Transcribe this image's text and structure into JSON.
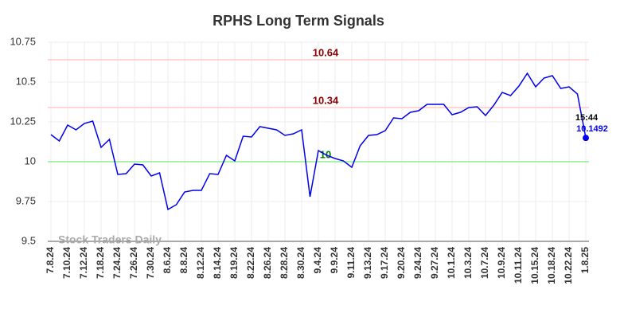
{
  "chart_data": {
    "type": "line",
    "title": "RPHS Long Term Signals",
    "watermark": "Stock Traders Daily",
    "categories": [
      "7.8.24",
      null,
      "7.10.24",
      null,
      "7.12.24",
      null,
      "7.18.24",
      null,
      "7.24.24",
      null,
      "7.26.24",
      null,
      "7.30.24",
      null,
      "8.6.24",
      null,
      "8.8.24",
      null,
      "8.12.24",
      null,
      "8.14.24",
      null,
      "8.19.24",
      null,
      "8.22.24",
      null,
      "8.26.24",
      null,
      "8.28.24",
      null,
      "8.30.24",
      null,
      "9.4.24",
      null,
      "9.9.24",
      null,
      "9.11.24",
      null,
      "9.13.24",
      null,
      "9.17.24",
      null,
      "9.20.24",
      null,
      "9.24.24",
      null,
      "9.27.24",
      null,
      "10.1.24",
      null,
      "10.3.24",
      null,
      "10.7.24",
      null,
      "10.9.24",
      null,
      "10.11.24",
      null,
      "10.15.24",
      null,
      "10.18.24",
      null,
      "10.22.24",
      null,
      "1.8.25"
    ],
    "values": [
      10.17,
      10.13,
      10.23,
      10.2,
      10.24,
      10.255,
      10.09,
      10.14,
      9.92,
      9.925,
      9.985,
      9.98,
      9.91,
      9.93,
      9.7,
      9.73,
      9.81,
      9.82,
      9.82,
      9.925,
      9.92,
      10.04,
      10.005,
      10.16,
      10.155,
      10.22,
      10.21,
      10.2,
      10.165,
      10.175,
      10.2,
      9.78,
      10.07,
      10.04,
      10.02,
      10.005,
      9.965,
      10.1,
      10.165,
      10.17,
      10.195,
      10.275,
      10.27,
      10.31,
      10.32,
      10.36,
      10.36,
      10.36,
      10.295,
      10.31,
      10.34,
      10.345,
      10.29,
      10.355,
      10.435,
      10.415,
      10.475,
      10.555,
      10.47,
      10.525,
      10.54,
      10.46,
      10.47,
      10.425,
      10.1492
    ],
    "color": "#0000ee",
    "ylim": [
      9.5,
      10.75
    ],
    "yticks": [
      9.5,
      9.75,
      10,
      10.25,
      10.5,
      10.75
    ],
    "grid": true,
    "hlines": [
      {
        "value": 10.64,
        "color": "#ffc8c8",
        "text_color": "#8b0000"
      },
      {
        "value": 10.34,
        "color": "#ffc8c8",
        "text_color": "#8b0000"
      },
      {
        "value": 10,
        "color": "#90ee90",
        "text_color": "#008000"
      }
    ],
    "last_time": "15:44"
  }
}
